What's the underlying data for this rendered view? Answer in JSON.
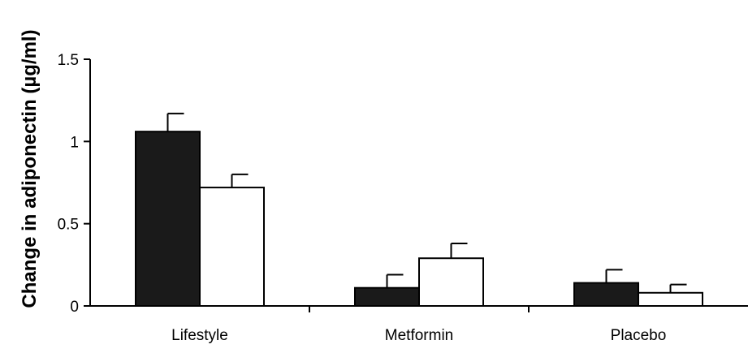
{
  "chart_data": {
    "type": "bar",
    "title": "",
    "xlabel": "",
    "ylabel": "Change in adiponectin (µg/ml)",
    "ylim": [
      0,
      1.5
    ],
    "yticks": [
      0,
      0.5,
      1,
      1.5
    ],
    "ytick_labels": [
      "0",
      "0.5",
      "1",
      "1.5"
    ],
    "categories": [
      "Lifestyle",
      "Metformin",
      "Placebo"
    ],
    "series": [
      {
        "fill": "#1a1a1a",
        "values": [
          1.06,
          0.11,
          0.14
        ],
        "errors": [
          0.11,
          0.08,
          0.08
        ]
      },
      {
        "fill": "#ffffff",
        "values": [
          0.72,
          0.29,
          0.08
        ],
        "errors": [
          0.08,
          0.09,
          0.05
        ]
      }
    ],
    "grid": false,
    "legend": "none"
  }
}
